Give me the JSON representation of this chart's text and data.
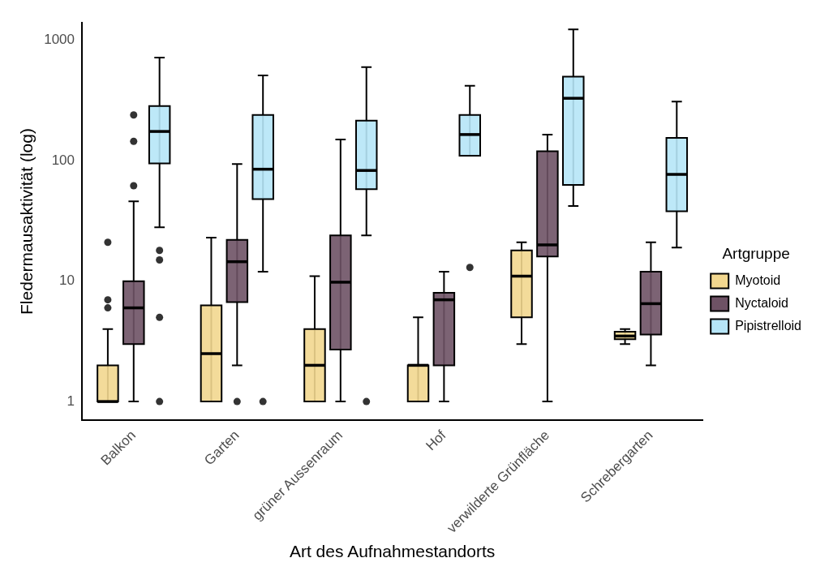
{
  "chart_data": {
    "type": "box",
    "xlabel": "Art des Aufnahmestandorts",
    "ylabel": "Fledermausaktivität (log)",
    "legend_title": "Artgruppe",
    "legend": "right",
    "log": true,
    "grid": false,
    "categories": [
      "Balkon",
      "Garten",
      "grüner Aussenraum",
      "Hof",
      "verwilderte Grünfläche",
      "Schrebergarten"
    ],
    "ylim": [
      0.7,
      1400
    ],
    "yticks": [
      1,
      10,
      100,
      1000
    ],
    "series": [
      {
        "name": "Myotoid",
        "color": "#f2d78f",
        "boxes": [
          {
            "low": 1,
            "q1": 1,
            "median": 1,
            "q3": 2,
            "high": 4,
            "outliers": [
              21,
              7,
              6
            ]
          },
          {
            "low": 1,
            "q1": 1,
            "median": 2.5,
            "q3": 6.3,
            "high": 23
          },
          {
            "low": 1,
            "q1": 1,
            "median": 2,
            "q3": 4,
            "high": 11
          },
          {
            "low": 1,
            "q1": 1,
            "median": 2,
            "q3": 2,
            "high": 5
          },
          {
            "low": 3,
            "q1": 5,
            "median": 11,
            "q3": 18,
            "high": 21
          },
          {
            "low": 3,
            "q1": 3.3,
            "median": 3.5,
            "q3": 3.8,
            "high": 4
          }
        ]
      },
      {
        "name": "Nyctaloid",
        "color": "#6e5265",
        "boxes": [
          {
            "low": 1,
            "q1": 3,
            "median": 6,
            "q3": 10,
            "high": 46,
            "outliers": [
              240,
              145,
              62
            ]
          },
          {
            "low": 2,
            "q1": 6.7,
            "median": 14.5,
            "q3": 22,
            "high": 94,
            "outliers": [
              1
            ]
          },
          {
            "low": 1,
            "q1": 2.7,
            "median": 9.8,
            "q3": 24,
            "high": 150
          },
          {
            "low": 1,
            "q1": 2,
            "median": 7,
            "q3": 8,
            "high": 12
          },
          {
            "low": 1,
            "q1": 16,
            "median": 20,
            "q3": 120,
            "high": 165
          },
          {
            "low": 2,
            "q1": 3.6,
            "median": 6.5,
            "q3": 12,
            "high": 21
          }
        ]
      },
      {
        "name": "Pipistrelloid",
        "color": "#b6e5f7",
        "boxes": [
          {
            "low": 28,
            "q1": 95,
            "median": 175,
            "q3": 285,
            "high": 720,
            "outliers": [
              18,
              15,
              5,
              1
            ]
          },
          {
            "low": 12,
            "q1": 48,
            "median": 85,
            "q3": 240,
            "high": 510,
            "outliers": [
              1
            ]
          },
          {
            "low": 24,
            "q1": 58,
            "median": 83,
            "q3": 215,
            "high": 600,
            "outliers": [
              1
            ]
          },
          {
            "low": 110,
            "q1": 110,
            "median": 165,
            "q3": 240,
            "high": 420,
            "outliers": [
              13
            ]
          },
          {
            "low": 42,
            "q1": 63,
            "median": 330,
            "q3": 500,
            "high": 1230
          },
          {
            "low": 19,
            "q1": 38,
            "median": 77,
            "q3": 155,
            "high": 310
          }
        ]
      }
    ]
  }
}
